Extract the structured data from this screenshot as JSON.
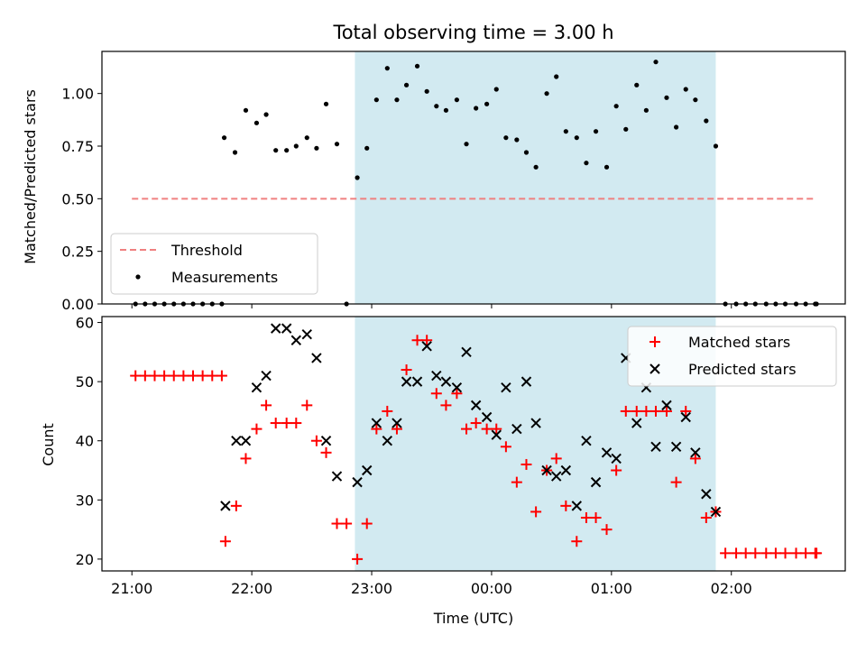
{
  "chart_data": [
    {
      "type": "scatter",
      "title": "Total observing time = 3.00 h",
      "xlabel": "",
      "ylabel": "Matched/Predicted stars",
      "xlim": [
        -0.25,
        5.95
      ],
      "ylim": [
        0,
        1.2
      ],
      "yticks": [
        0.0,
        0.25,
        0.5,
        0.75,
        1.0
      ],
      "ytick_labels": [
        "0.00",
        "0.25",
        "0.50",
        "0.75",
        "1.00"
      ],
      "shaded_region": {
        "x": [
          1.86,
          4.87
        ],
        "color": "#add8e6"
      },
      "threshold": {
        "name": "Threshold",
        "y": 0.5,
        "x": [
          0.0,
          5.7
        ],
        "color": "#f08080"
      },
      "series": [
        {
          "name": "Measurements",
          "color": "#000000",
          "points": [
            [
              0.03,
              0
            ],
            [
              0.11,
              0
            ],
            [
              0.19,
              0
            ],
            [
              0.27,
              0
            ],
            [
              0.35,
              0
            ],
            [
              0.43,
              0
            ],
            [
              0.51,
              0
            ],
            [
              0.59,
              0
            ],
            [
              0.67,
              0
            ],
            [
              0.75,
              0
            ],
            [
              0.77,
              0.79
            ],
            [
              0.86,
              0.72
            ],
            [
              0.95,
              0.92
            ],
            [
              1.04,
              0.86
            ],
            [
              1.12,
              0.9
            ],
            [
              1.2,
              0.73
            ],
            [
              1.29,
              0.73
            ],
            [
              1.37,
              0.75
            ],
            [
              1.46,
              0.79
            ],
            [
              1.54,
              0.74
            ],
            [
              1.62,
              0.95
            ],
            [
              1.71,
              0.76
            ],
            [
              1.79,
              0.0
            ],
            [
              1.88,
              0.6
            ],
            [
              1.96,
              0.74
            ],
            [
              2.04,
              0.97
            ],
            [
              2.13,
              1.12
            ],
            [
              2.21,
              0.97
            ],
            [
              2.29,
              1.04
            ],
            [
              2.38,
              1.13
            ],
            [
              2.46,
              1.01
            ],
            [
              2.54,
              0.94
            ],
            [
              2.62,
              0.92
            ],
            [
              2.71,
              0.97
            ],
            [
              2.79,
              0.76
            ],
            [
              2.87,
              0.93
            ],
            [
              2.96,
              0.95
            ],
            [
              3.04,
              1.02
            ],
            [
              3.12,
              0.79
            ],
            [
              3.21,
              0.78
            ],
            [
              3.29,
              0.72
            ],
            [
              3.37,
              0.65
            ],
            [
              3.46,
              1.0
            ],
            [
              3.54,
              1.08
            ],
            [
              3.62,
              0.82
            ],
            [
              3.71,
              0.79
            ],
            [
              3.79,
              0.67
            ],
            [
              3.87,
              0.82
            ],
            [
              3.96,
              0.65
            ],
            [
              4.04,
              0.94
            ],
            [
              4.12,
              0.83
            ],
            [
              4.21,
              1.04
            ],
            [
              4.29,
              0.92
            ],
            [
              4.37,
              1.15
            ],
            [
              4.46,
              0.98
            ],
            [
              4.54,
              0.84
            ],
            [
              4.62,
              1.02
            ],
            [
              4.7,
              0.97
            ],
            [
              4.79,
              0.87
            ],
            [
              4.87,
              0.75
            ],
            [
              4.95,
              0
            ],
            [
              5.04,
              0
            ],
            [
              5.12,
              0
            ],
            [
              5.2,
              0
            ],
            [
              5.29,
              0
            ],
            [
              5.37,
              0
            ],
            [
              5.45,
              0
            ],
            [
              5.54,
              0
            ],
            [
              5.62,
              0
            ],
            [
              5.7,
              0
            ],
            [
              5.71,
              0
            ]
          ]
        }
      ],
      "legend": {
        "placement": "lower-left",
        "entries": [
          "Threshold",
          "Measurements"
        ]
      }
    },
    {
      "type": "scatter",
      "title": "",
      "xlabel": "Time (UTC)",
      "ylabel": "Count",
      "xlim": [
        -0.25,
        5.95
      ],
      "ylim": [
        18,
        61
      ],
      "yticks": [
        20,
        30,
        40,
        50,
        60
      ],
      "ytick_labels": [
        "20",
        "30",
        "40",
        "50",
        "60"
      ],
      "xticks": [
        0,
        1,
        2,
        3,
        4,
        5,
        6
      ],
      "xtick_labels": [
        "21:00",
        "22:00",
        "23:00",
        "00:00",
        "01:00",
        "02:00"
      ],
      "shaded_region": {
        "x": [
          1.86,
          4.87
        ],
        "color": "#add8e6"
      },
      "series": [
        {
          "name": "Matched stars",
          "marker": "+",
          "color": "#ff0000",
          "points": [
            [
              0.03,
              51
            ],
            [
              0.11,
              51
            ],
            [
              0.19,
              51
            ],
            [
              0.27,
              51
            ],
            [
              0.35,
              51
            ],
            [
              0.43,
              51
            ],
            [
              0.51,
              51
            ],
            [
              0.59,
              51
            ],
            [
              0.67,
              51
            ],
            [
              0.75,
              51
            ],
            [
              0.78,
              23
            ],
            [
              0.87,
              29
            ],
            [
              0.95,
              37
            ],
            [
              1.04,
              42
            ],
            [
              1.12,
              46
            ],
            [
              1.2,
              43
            ],
            [
              1.29,
              43
            ],
            [
              1.37,
              43
            ],
            [
              1.46,
              46
            ],
            [
              1.54,
              40
            ],
            [
              1.62,
              38
            ],
            [
              1.71,
              26
            ],
            [
              1.79,
              26
            ],
            [
              1.88,
              20
            ],
            [
              1.96,
              26
            ],
            [
              2.04,
              42
            ],
            [
              2.13,
              45
            ],
            [
              2.21,
              42
            ],
            [
              2.29,
              52
            ],
            [
              2.38,
              57
            ],
            [
              2.46,
              57
            ],
            [
              2.54,
              48
            ],
            [
              2.62,
              46
            ],
            [
              2.71,
              48
            ],
            [
              2.79,
              42
            ],
            [
              2.87,
              43
            ],
            [
              2.96,
              42
            ],
            [
              3.04,
              42
            ],
            [
              3.12,
              39
            ],
            [
              3.21,
              33
            ],
            [
              3.29,
              36
            ],
            [
              3.37,
              28
            ],
            [
              3.46,
              35
            ],
            [
              3.54,
              37
            ],
            [
              3.62,
              29
            ],
            [
              3.71,
              23
            ],
            [
              3.79,
              27
            ],
            [
              3.87,
              27
            ],
            [
              3.96,
              25
            ],
            [
              4.04,
              35
            ],
            [
              4.12,
              45
            ],
            [
              4.21,
              45
            ],
            [
              4.29,
              45
            ],
            [
              4.37,
              45
            ],
            [
              4.46,
              45
            ],
            [
              4.54,
              33
            ],
            [
              4.62,
              45
            ],
            [
              4.7,
              37
            ],
            [
              4.79,
              27
            ],
            [
              4.87,
              28
            ],
            [
              4.95,
              21
            ],
            [
              5.04,
              21
            ],
            [
              5.12,
              21
            ],
            [
              5.2,
              21
            ],
            [
              5.29,
              21
            ],
            [
              5.37,
              21
            ],
            [
              5.45,
              21
            ],
            [
              5.54,
              21
            ],
            [
              5.62,
              21
            ],
            [
              5.7,
              21
            ],
            [
              5.71,
              21
            ]
          ]
        },
        {
          "name": "Predicted stars",
          "marker": "x",
          "color": "#000000",
          "points": [
            [
              0.78,
              29
            ],
            [
              0.87,
              40
            ],
            [
              0.95,
              40
            ],
            [
              1.04,
              49
            ],
            [
              1.12,
              51
            ],
            [
              1.2,
              59
            ],
            [
              1.29,
              59
            ],
            [
              1.37,
              57
            ],
            [
              1.46,
              58
            ],
            [
              1.54,
              54
            ],
            [
              1.62,
              40
            ],
            [
              1.71,
              34
            ],
            [
              1.88,
              33
            ],
            [
              1.96,
              35
            ],
            [
              2.04,
              43
            ],
            [
              2.13,
              40
            ],
            [
              2.21,
              43
            ],
            [
              2.29,
              50
            ],
            [
              2.38,
              50
            ],
            [
              2.46,
              56
            ],
            [
              2.54,
              51
            ],
            [
              2.62,
              50
            ],
            [
              2.71,
              49
            ],
            [
              2.79,
              55
            ],
            [
              2.87,
              46
            ],
            [
              2.96,
              44
            ],
            [
              3.04,
              41
            ],
            [
              3.12,
              49
            ],
            [
              3.21,
              42
            ],
            [
              3.29,
              50
            ],
            [
              3.37,
              43
            ],
            [
              3.46,
              35
            ],
            [
              3.54,
              34
            ],
            [
              3.62,
              35
            ],
            [
              3.71,
              29
            ],
            [
              3.79,
              40
            ],
            [
              3.87,
              33
            ],
            [
              3.96,
              38
            ],
            [
              4.04,
              37
            ],
            [
              4.12,
              54
            ],
            [
              4.21,
              43
            ],
            [
              4.29,
              49
            ],
            [
              4.37,
              39
            ],
            [
              4.46,
              46
            ],
            [
              4.54,
              39
            ],
            [
              4.62,
              44
            ],
            [
              4.7,
              38
            ],
            [
              4.79,
              31
            ],
            [
              4.87,
              28
            ]
          ]
        }
      ],
      "legend": {
        "placement": "upper-right",
        "entries": [
          "Matched stars",
          "Predicted stars"
        ]
      }
    }
  ]
}
